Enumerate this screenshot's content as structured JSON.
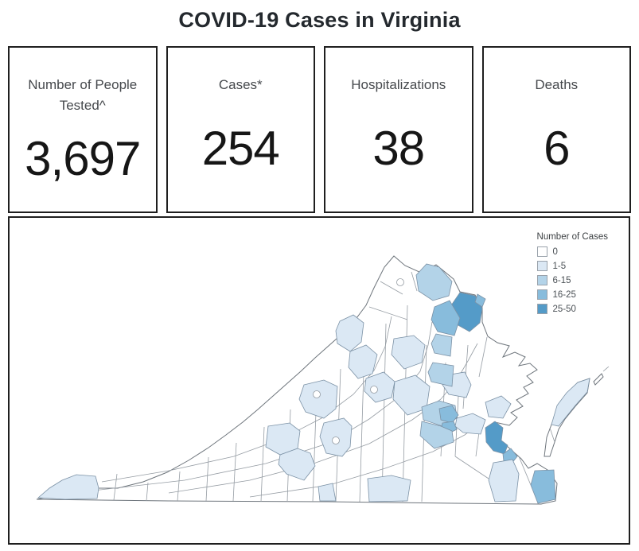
{
  "title": "COVID-19 Cases in Virginia",
  "stats": [
    {
      "label": "Number of People Tested^",
      "value": "3,697"
    },
    {
      "label": "Cases*",
      "value": "254"
    },
    {
      "label": "Hospitalizations",
      "value": "38"
    },
    {
      "label": "Deaths",
      "value": "6"
    }
  ],
  "legend": {
    "title": "Number of Cases",
    "items": [
      {
        "label": "0",
        "color": "#ffffff"
      },
      {
        "label": "1-5",
        "color": "#dbe8f4"
      },
      {
        "label": "6-15",
        "color": "#b3d3e8"
      },
      {
        "label": "16-25",
        "color": "#88bcdc"
      },
      {
        "label": "25-50",
        "color": "#549bc8"
      }
    ]
  },
  "map": {
    "state": "Virginia",
    "cell_categories": [
      1,
      1,
      1,
      1,
      1,
      1,
      1,
      1,
      1,
      1,
      1,
      2,
      4,
      3,
      3,
      2,
      2,
      2,
      3,
      3,
      2,
      1,
      1,
      4,
      3,
      1,
      3,
      1,
      1,
      1
    ]
  },
  "chart_data": {
    "type": "heatmap",
    "subtype": "choropleth-map",
    "region": "Virginia, USA — counties and independent cities",
    "title": "Number of Cases",
    "bins": [
      "0",
      "1-5",
      "6-15",
      "16-25",
      "25-50"
    ],
    "bin_colors": [
      "#ffffff",
      "#dbe8f4",
      "#b3d3e8",
      "#88bcdc",
      "#549bc8"
    ],
    "legend_position": "top-right",
    "kpis": [
      {
        "label": "Number of People Tested^",
        "value": 3697
      },
      {
        "label": "Cases*",
        "value": 254
      },
      {
        "label": "Hospitalizations",
        "value": 38
      },
      {
        "label": "Deaths",
        "value": 6
      }
    ],
    "notes": "Darkest bins (25-50) appear in Northern Virginia (Fairfax area) and the James City area; 16-25 bins near Prince William, Richmond area, Newport News and Virginia Beach; scattered 1-5 and 6-15 counties across the Piedmont, Shenandoah Valley, Eastern Shore and far southwest tip; most counties 0."
  }
}
